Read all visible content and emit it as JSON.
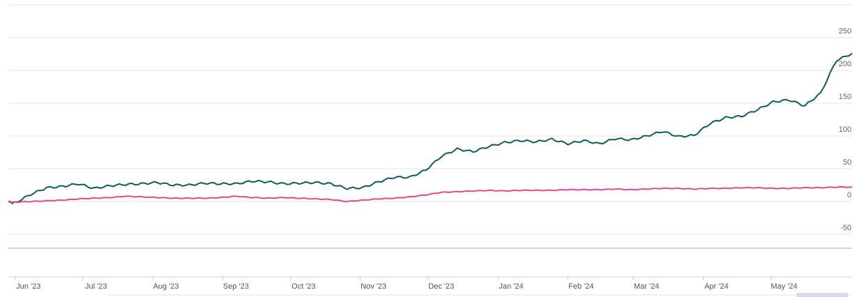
{
  "chart_data": {
    "type": "line",
    "title": "",
    "xlabel": "",
    "ylabel": "",
    "ylim": [
      -50,
      250
    ],
    "yticks": [
      -50,
      0,
      50,
      100,
      150,
      200,
      250
    ],
    "grid": true,
    "legend": "none",
    "x_labels": [
      "Jun '23",
      "Jul '23",
      "Aug '23",
      "Sep '23",
      "Oct '23",
      "Nov '23",
      "Dec '23",
      "Jan '24",
      "Feb '24",
      "Mar '24",
      "Apr '24",
      "May '24"
    ],
    "x": [
      "2023-05-29",
      "2023-06-01",
      "2023-06-08",
      "2023-06-15",
      "2023-06-22",
      "2023-06-29",
      "2023-07-06",
      "2023-07-13",
      "2023-07-20",
      "2023-07-27",
      "2023-08-03",
      "2023-08-10",
      "2023-08-17",
      "2023-08-24",
      "2023-08-31",
      "2023-09-07",
      "2023-09-14",
      "2023-09-21",
      "2023-09-28",
      "2023-10-05",
      "2023-10-12",
      "2023-10-19",
      "2023-10-26",
      "2023-11-02",
      "2023-11-09",
      "2023-11-16",
      "2023-11-23",
      "2023-11-30",
      "2023-12-07",
      "2023-12-14",
      "2023-12-21",
      "2023-12-28",
      "2024-01-04",
      "2024-01-11",
      "2024-01-18",
      "2024-01-25",
      "2024-02-01",
      "2024-02-08",
      "2024-02-15",
      "2024-02-22",
      "2024-02-29",
      "2024-03-07",
      "2024-03-14",
      "2024-03-21",
      "2024-03-28",
      "2024-04-04",
      "2024-04-11",
      "2024-04-18",
      "2024-04-25",
      "2024-05-02",
      "2024-05-09",
      "2024-05-16",
      "2024-05-23",
      "2024-05-30",
      "2024-06-06"
    ],
    "series": [
      {
        "color": "#0d5c5c",
        "values": [
          -1,
          -2,
          11,
          21,
          23,
          27,
          20,
          24,
          26,
          27,
          29,
          25,
          25,
          28,
          27,
          27,
          31,
          30,
          27,
          28,
          29,
          27,
          20,
          21,
          30,
          37,
          37,
          48,
          69,
          80,
          76,
          84,
          90,
          93,
          91,
          95,
          88,
          93,
          88,
          96,
          94,
          100,
          107,
          99,
          101,
          119,
          128,
          130,
          140,
          152,
          155,
          146,
          165,
          215,
          226
        ]
      },
      {
        "color": "#e2498a",
        "values": [
          -1,
          -1,
          0,
          1,
          2,
          4,
          5,
          6,
          8,
          7,
          6,
          5,
          5,
          5,
          6,
          8,
          6,
          5,
          6,
          5,
          4,
          3,
          0,
          2,
          4,
          5,
          7,
          10,
          14,
          15,
          16,
          17,
          16,
          17,
          17,
          17,
          18,
          18,
          18,
          19,
          18,
          19,
          20,
          20,
          19,
          20,
          20,
          21,
          21,
          20,
          20,
          21,
          21,
          22,
          22
        ]
      }
    ]
  }
}
